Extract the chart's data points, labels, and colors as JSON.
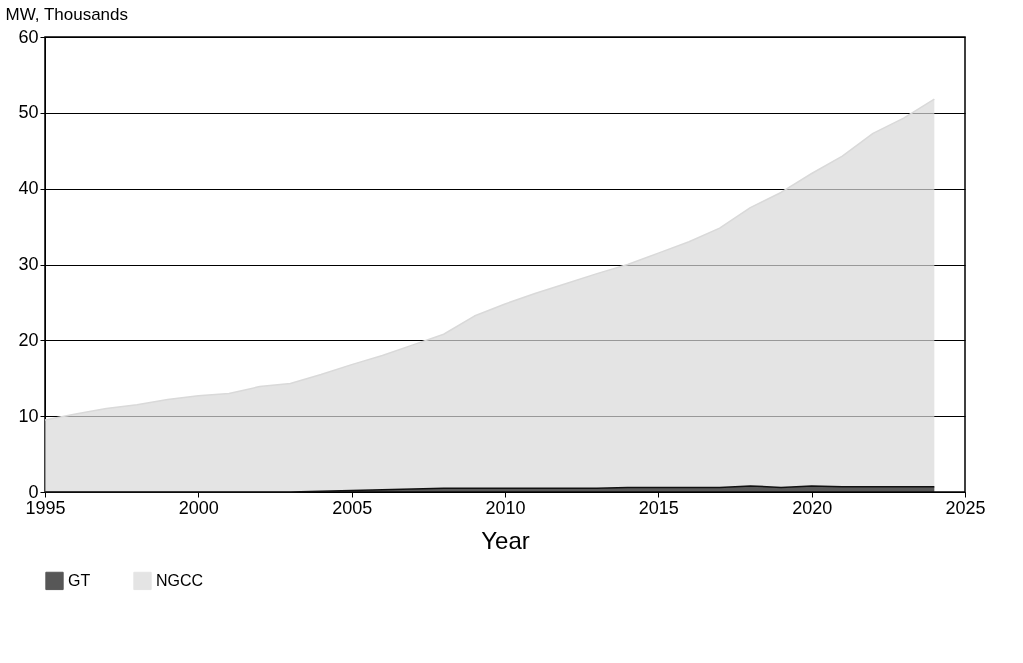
{
  "chart_data": {
    "type": "area",
    "stacked": true,
    "xlabel": "Year",
    "ylabel": "MW, Thousands",
    "x": [
      1995,
      1996,
      1997,
      1998,
      1999,
      2000,
      2001,
      2002,
      2003,
      2004,
      2005,
      2006,
      2007,
      2008,
      2009,
      2010,
      2011,
      2012,
      2013,
      2014,
      2015,
      2016,
      2017,
      2018,
      2019,
      2020,
      2021,
      2022,
      2023,
      2024
    ],
    "series": [
      {
        "name": "GT",
        "color": "#111111",
        "values": [
          0,
          0,
          0,
          0,
          0,
          0,
          0,
          0,
          0,
          0.1,
          0.2,
          0.3,
          0.4,
          0.5,
          0.5,
          0.5,
          0.5,
          0.5,
          0.5,
          0.6,
          0.6,
          0.6,
          0.6,
          0.8,
          0.6,
          0.8,
          0.7,
          0.7,
          0.7,
          0.7
        ]
      },
      {
        "name": "NGCC",
        "color": "#d9d9d9",
        "values": [
          9.5,
          10.3,
          11.0,
          11.5,
          12.2,
          12.7,
          13.0,
          13.9,
          14.3,
          15.4,
          16.6,
          17.7,
          19.0,
          20.3,
          22.7,
          24.3,
          25.7,
          27.0,
          28.3,
          29.4,
          30.9,
          32.4,
          34.2,
          36.7,
          38.9,
          41.2,
          43.6,
          46.6,
          48.6,
          51.1
        ]
      }
    ],
    "xlim": [
      1995,
      2025
    ],
    "xticks": [
      1995,
      2000,
      2005,
      2010,
      2015,
      2020,
      2025
    ],
    "ylim": [
      0,
      60
    ],
    "yticks": [
      0,
      10,
      20,
      30,
      40,
      50,
      60
    ],
    "grid": "y",
    "legend": "bottom"
  }
}
